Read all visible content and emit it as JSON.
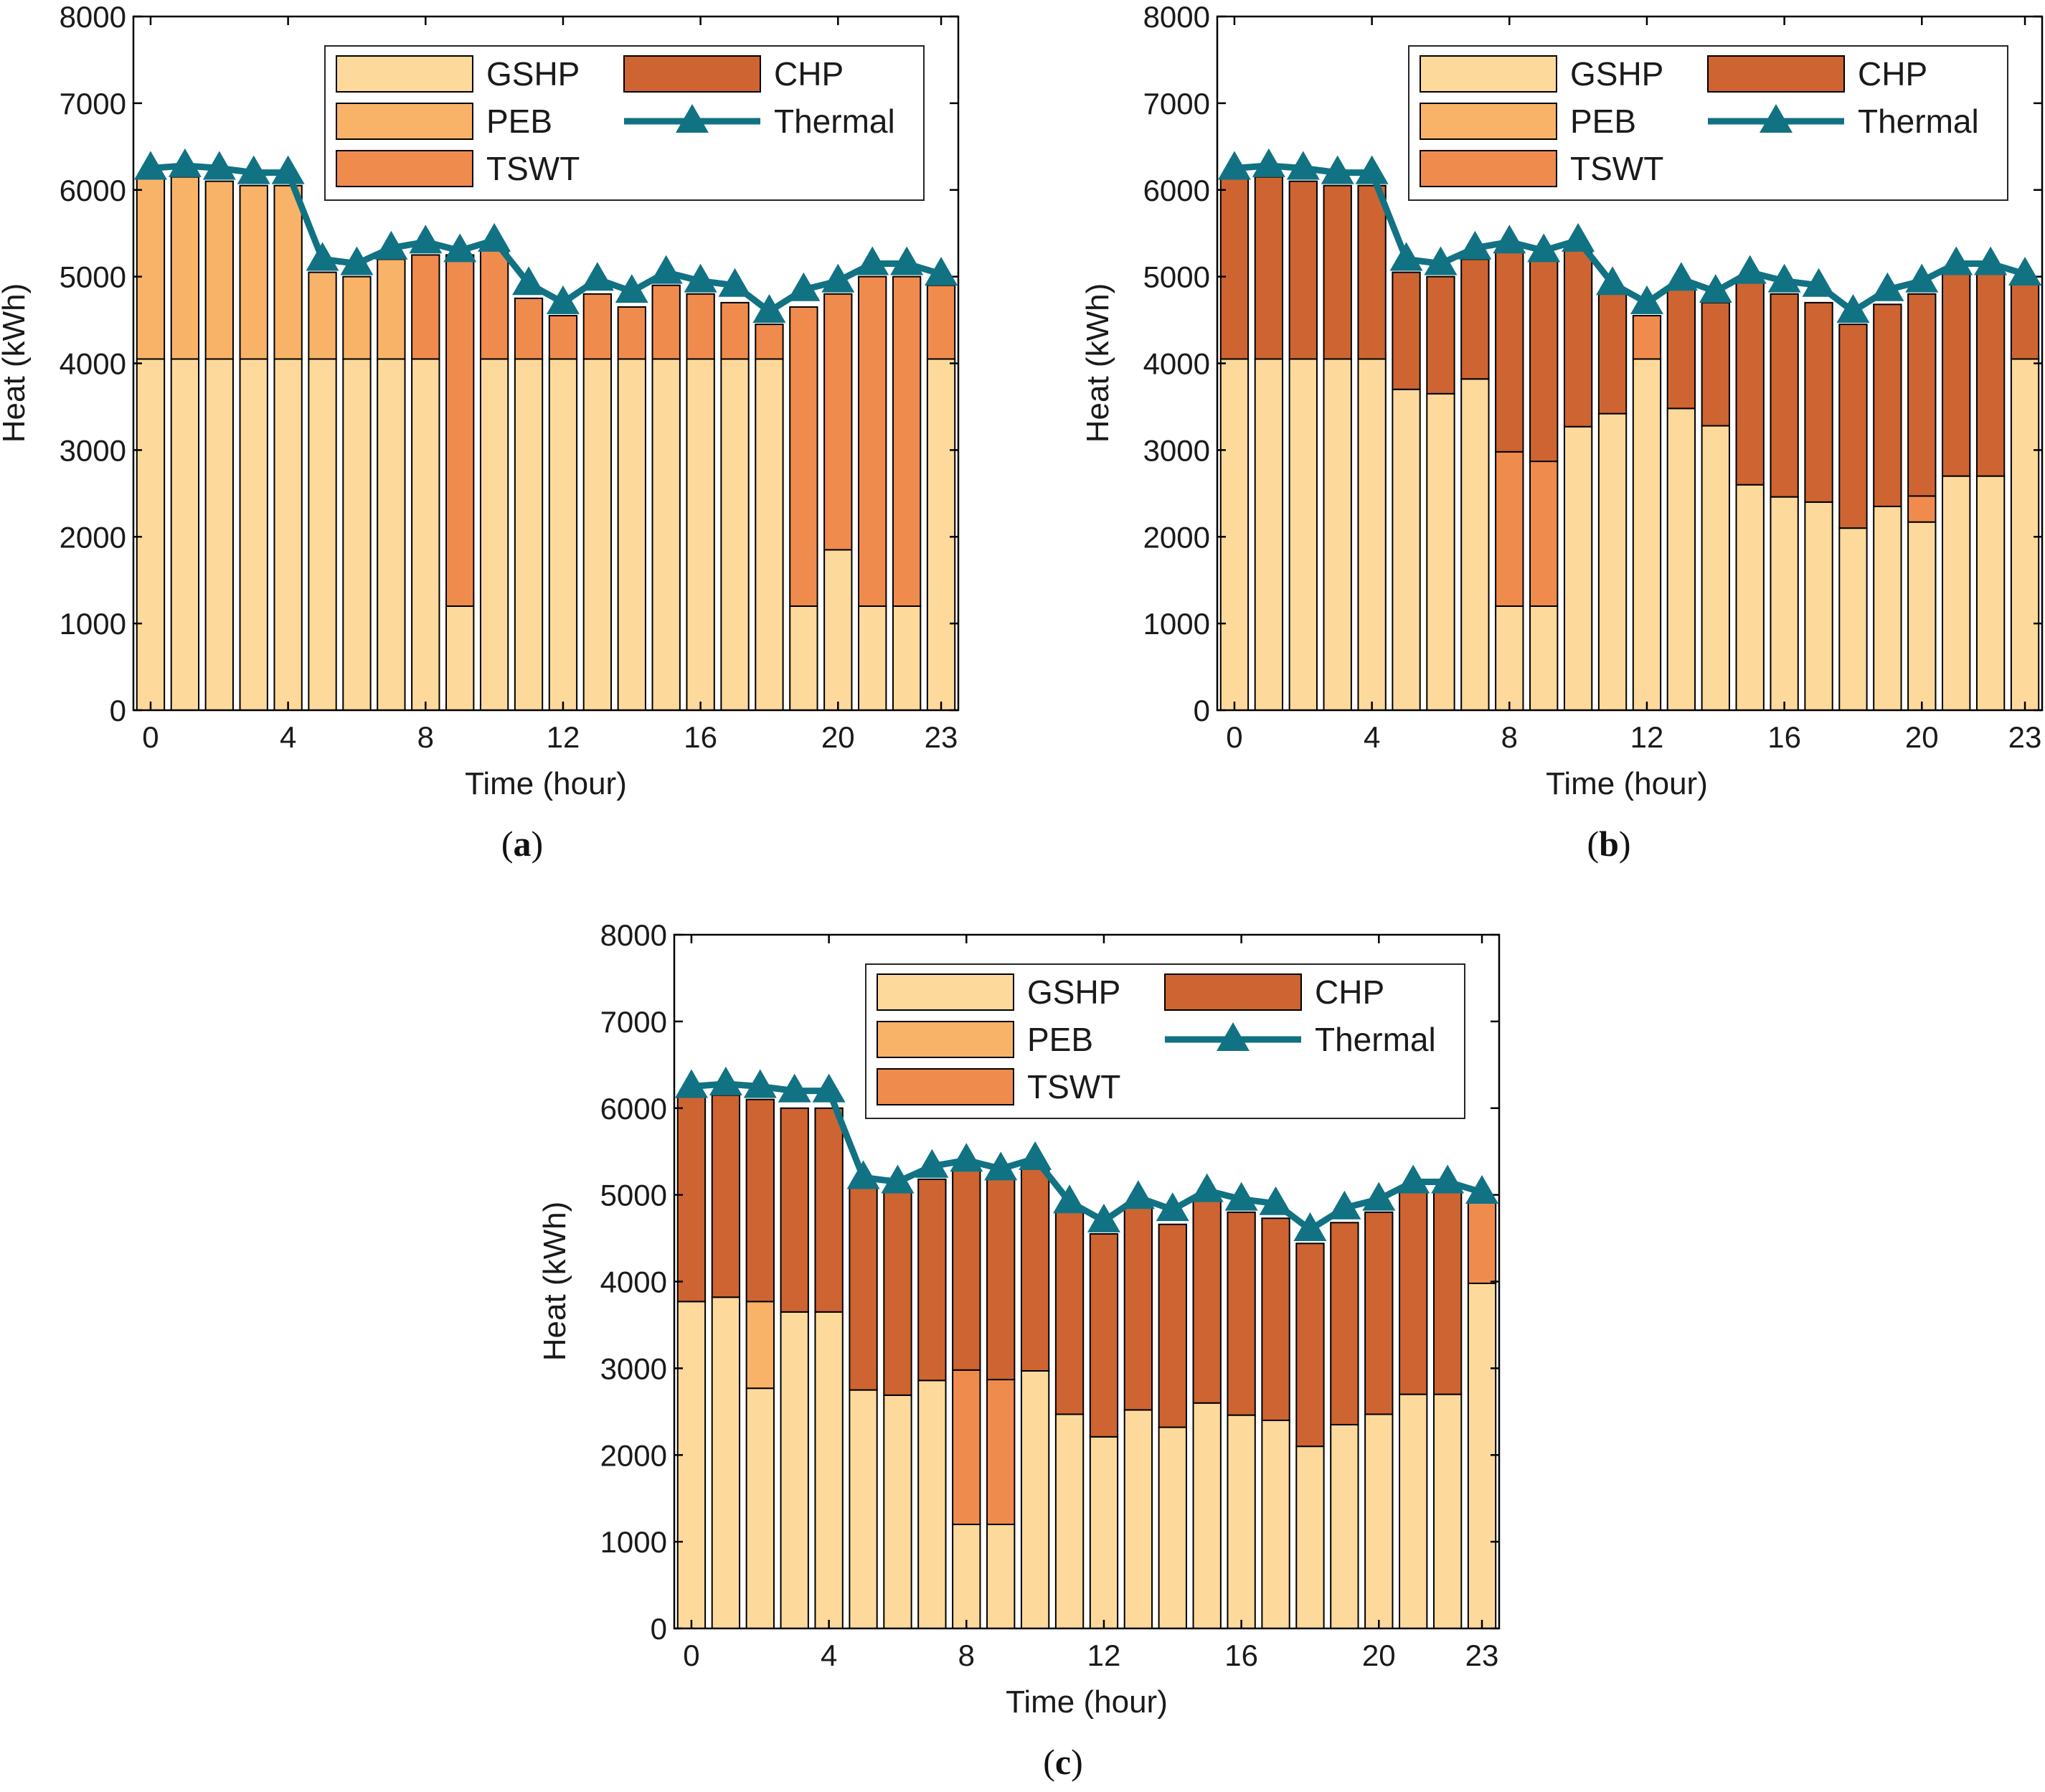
{
  "colors": {
    "GSHP": "#FDDA9C",
    "PEB": "#F9B368",
    "TSWT": "#F08B4E",
    "CHP": "#CE6431",
    "Thermal": "#117283",
    "axis": "#000000",
    "bar_edge": "#000000"
  },
  "legend_labels": [
    "GSHP",
    "PEB",
    "TSWT",
    "CHP",
    "Thermal"
  ],
  "chart_data": [
    {
      "type": "bar",
      "panel_label": "a",
      "xlabel": "Time (hour)",
      "ylabel": "Heat (kWh)",
      "ylim": [
        0,
        8000
      ],
      "xlim": [
        -0.5,
        23.5
      ],
      "xticks": [
        0,
        4,
        8,
        12,
        16,
        20,
        23
      ],
      "yticks": [
        0,
        1000,
        2000,
        3000,
        4000,
        5000,
        6000,
        7000,
        8000
      ],
      "legend_position": "top-right",
      "stacked": true,
      "categories": [
        0,
        1,
        2,
        3,
        4,
        5,
        6,
        7,
        8,
        9,
        10,
        11,
        12,
        13,
        14,
        15,
        16,
        17,
        18,
        19,
        20,
        21,
        22,
        23
      ],
      "series": [
        {
          "name": "GSHP",
          "kind": "bar",
          "values": [
            4050,
            4050,
            4050,
            4050,
            4050,
            4050,
            4050,
            4050,
            4050,
            1200,
            4050,
            4050,
            4050,
            4050,
            4050,
            4050,
            4050,
            4050,
            4050,
            1200,
            1850,
            1200,
            1200,
            4050
          ]
        },
        {
          "name": "PEB",
          "kind": "bar",
          "values": [
            2100,
            2100,
            2050,
            2000,
            2000,
            1000,
            950,
            1150,
            0,
            0,
            0,
            0,
            0,
            0,
            0,
            0,
            0,
            0,
            0,
            0,
            0,
            0,
            0,
            0
          ]
        },
        {
          "name": "TSWT",
          "kind": "bar",
          "values": [
            0,
            0,
            0,
            0,
            0,
            0,
            0,
            0,
            1200,
            4050,
            1250,
            700,
            500,
            750,
            600,
            850,
            750,
            650,
            400,
            3450,
            2950,
            3800,
            3800,
            850
          ]
        },
        {
          "name": "CHP",
          "kind": "bar",
          "values": [
            0,
            0,
            0,
            0,
            0,
            0,
            0,
            0,
            0,
            0,
            0,
            0,
            0,
            0,
            0,
            0,
            0,
            0,
            0,
            0,
            0,
            0,
            0,
            0
          ]
        },
        {
          "name": "Thermal",
          "kind": "line",
          "values": [
            6250,
            6280,
            6250,
            6200,
            6200,
            5200,
            5150,
            5330,
            5400,
            5300,
            5420,
            4920,
            4700,
            4970,
            4830,
            5050,
            4950,
            4900,
            4600,
            4850,
            4950,
            5150,
            5150,
            5030
          ]
        }
      ]
    },
    {
      "type": "bar",
      "panel_label": "b",
      "xlabel": "Time (hour)",
      "ylabel": "Heat (kWh)",
      "ylim": [
        0,
        8000
      ],
      "xlim": [
        -0.5,
        23.5
      ],
      "xticks": [
        0,
        4,
        8,
        12,
        16,
        20,
        23
      ],
      "yticks": [
        0,
        1000,
        2000,
        3000,
        4000,
        5000,
        6000,
        7000,
        8000
      ],
      "legend_position": "top-right",
      "stacked": true,
      "categories": [
        0,
        1,
        2,
        3,
        4,
        5,
        6,
        7,
        8,
        9,
        10,
        11,
        12,
        13,
        14,
        15,
        16,
        17,
        18,
        19,
        20,
        21,
        22,
        23
      ],
      "series": [
        {
          "name": "GSHP",
          "kind": "bar",
          "values": [
            4050,
            4050,
            4050,
            4050,
            4050,
            3700,
            3650,
            3820,
            1200,
            1200,
            3270,
            3420,
            4050,
            3480,
            3280,
            2600,
            2460,
            2400,
            2100,
            2350,
            2170,
            2700,
            2700,
            4050
          ]
        },
        {
          "name": "PEB",
          "kind": "bar",
          "values": [
            0,
            0,
            0,
            0,
            0,
            0,
            0,
            0,
            0,
            0,
            0,
            0,
            0,
            0,
            0,
            0,
            0,
            0,
            0,
            0,
            0,
            0,
            0,
            0
          ]
        },
        {
          "name": "TSWT",
          "kind": "bar",
          "values": [
            0,
            0,
            0,
            0,
            0,
            0,
            0,
            0,
            1780,
            1670,
            0,
            0,
            500,
            0,
            0,
            0,
            0,
            0,
            0,
            0,
            300,
            0,
            0,
            0
          ]
        },
        {
          "name": "CHP",
          "kind": "bar",
          "values": [
            2100,
            2100,
            2050,
            2000,
            2000,
            1350,
            1350,
            1380,
            2320,
            2330,
            2030,
            1380,
            0,
            1370,
            1420,
            2330,
            2340,
            2300,
            2350,
            2330,
            2330,
            2330,
            2330,
            880
          ]
        },
        {
          "name": "Thermal",
          "kind": "line",
          "values": [
            6250,
            6280,
            6250,
            6200,
            6200,
            5200,
            5150,
            5330,
            5400,
            5300,
            5420,
            4920,
            4700,
            4970,
            4830,
            5050,
            4950,
            4900,
            4600,
            4850,
            4950,
            5150,
            5150,
            5030
          ]
        }
      ]
    },
    {
      "type": "bar",
      "panel_label": "c",
      "xlabel": "Time (hour)",
      "ylabel": "Heat (kWh)",
      "ylim": [
        0,
        8000
      ],
      "xlim": [
        -0.5,
        23.5
      ],
      "xticks": [
        0,
        4,
        8,
        12,
        16,
        20,
        23
      ],
      "yticks": [
        0,
        1000,
        2000,
        3000,
        4000,
        5000,
        6000,
        7000,
        8000
      ],
      "legend_position": "top-right",
      "stacked": true,
      "categories": [
        0,
        1,
        2,
        3,
        4,
        5,
        6,
        7,
        8,
        9,
        10,
        11,
        12,
        13,
        14,
        15,
        16,
        17,
        18,
        19,
        20,
        21,
        22,
        23
      ],
      "series": [
        {
          "name": "GSHP",
          "kind": "bar",
          "values": [
            3770,
            3820,
            2770,
            3650,
            3650,
            2750,
            2690,
            2860,
            1200,
            1200,
            2970,
            2470,
            2210,
            2520,
            2320,
            2600,
            2460,
            2400,
            2100,
            2350,
            2470,
            2700,
            2700,
            3980
          ]
        },
        {
          "name": "PEB",
          "kind": "bar",
          "values": [
            0,
            0,
            1000,
            0,
            0,
            0,
            0,
            0,
            0,
            0,
            0,
            0,
            0,
            0,
            0,
            0,
            0,
            0,
            0,
            0,
            0,
            0,
            0,
            0
          ]
        },
        {
          "name": "TSWT",
          "kind": "bar",
          "values": [
            0,
            0,
            0,
            0,
            0,
            0,
            0,
            0,
            1780,
            1670,
            0,
            0,
            0,
            0,
            0,
            0,
            0,
            0,
            0,
            0,
            0,
            0,
            0,
            950
          ]
        },
        {
          "name": "CHP",
          "kind": "bar",
          "values": [
            2380,
            2330,
            2330,
            2350,
            2350,
            2350,
            2360,
            2320,
            2320,
            2330,
            2330,
            2330,
            2340,
            2330,
            2340,
            2330,
            2340,
            2330,
            2340,
            2330,
            2330,
            2330,
            2330,
            0
          ]
        },
        {
          "name": "Thermal",
          "kind": "line",
          "values": [
            6250,
            6280,
            6250,
            6200,
            6200,
            5200,
            5150,
            5330,
            5400,
            5300,
            5420,
            4920,
            4700,
            4970,
            4830,
            5050,
            4950,
            4900,
            4600,
            4850,
            4950,
            5150,
            5150,
            5030
          ]
        }
      ]
    }
  ]
}
